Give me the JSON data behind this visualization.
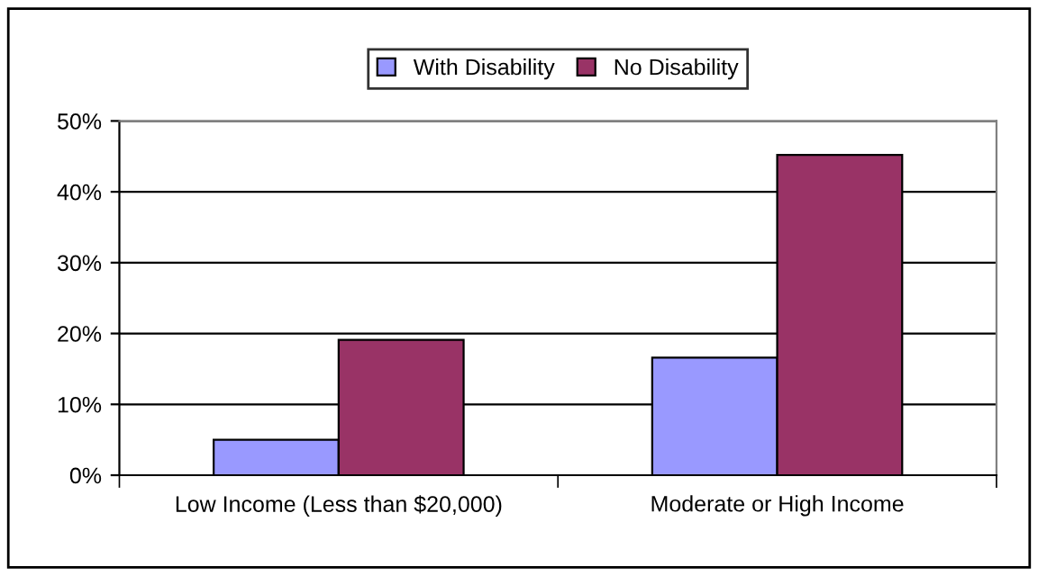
{
  "chart_data": {
    "type": "bar",
    "categories": [
      "Low Income (Less than $20,000)",
      "Moderate or High Income"
    ],
    "series": [
      {
        "name": "With Disability",
        "color": "#9999ff",
        "values": [
          5,
          16.6
        ]
      },
      {
        "name": "No Disability",
        "color": "#993366",
        "values": [
          19.1,
          45.2
        ]
      }
    ],
    "ylim": [
      0,
      50
    ],
    "yticks": [
      {
        "value": 0,
        "label": "0%"
      },
      {
        "value": 10,
        "label": "10%"
      },
      {
        "value": 20,
        "label": "20%"
      },
      {
        "value": 30,
        "label": "30%"
      },
      {
        "value": 40,
        "label": "40%"
      },
      {
        "value": 50,
        "label": "50%"
      }
    ],
    "grid": "y",
    "legend": "top"
  }
}
